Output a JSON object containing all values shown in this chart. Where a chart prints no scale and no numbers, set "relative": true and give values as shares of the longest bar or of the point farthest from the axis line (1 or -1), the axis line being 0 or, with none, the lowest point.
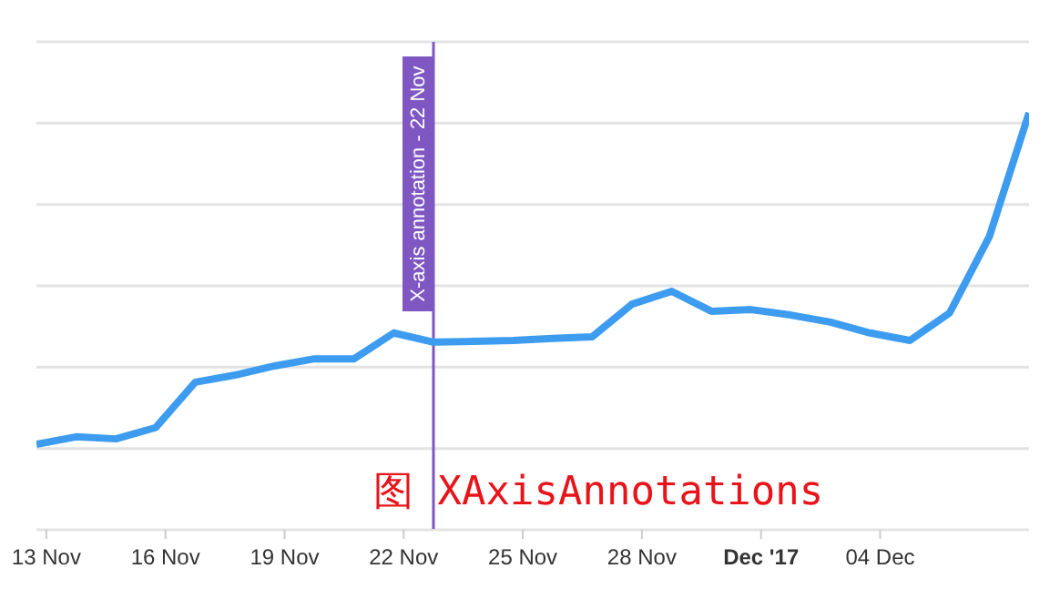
{
  "chart_data": {
    "type": "line",
    "relative": true,
    "grid": "y",
    "legend": false,
    "marker": "none",
    "line_style": "solid",
    "x": [
      "2017-11-12T18:00",
      "2017-11-13T18:00",
      "2017-11-14T18:00",
      "2017-11-15T18:00",
      "2017-11-16T18:00",
      "2017-11-17T18:00",
      "2017-11-18T18:00",
      "2017-11-19T18:00",
      "2017-11-20T18:00",
      "2017-11-21T18:00",
      "2017-11-22T18:00",
      "2017-11-23T18:00",
      "2017-11-24T18:00",
      "2017-11-25T18:00",
      "2017-11-26T18:00",
      "2017-11-27T18:00",
      "2017-11-28T18:00",
      "2017-11-29T18:00",
      "2017-11-30T18:00",
      "2017-12-01T18:00",
      "2017-12-02T18:00",
      "2017-12-03T18:00",
      "2017-12-04T18:00",
      "2017-12-05T18:00",
      "2017-12-06T18:00",
      "2017-12-07T18:00"
    ],
    "series": [
      {
        "color": "#3d9cf0",
        "values": [
          0.205,
          0.223,
          0.218,
          0.245,
          0.354,
          0.371,
          0.393,
          0.41,
          0.41,
          0.472,
          0.45,
          0.452,
          0.454,
          0.459,
          0.463,
          0.541,
          0.572,
          0.524,
          0.528,
          0.515,
          0.498,
          0.472,
          0.454,
          0.52,
          0.703,
          1
        ]
      }
    ],
    "xlim": [
      "2017-11-12T18:00",
      "2017-12-07T18:00"
    ],
    "xticks": [
      {
        "value": "2017-11-13",
        "label": "13 Nov"
      },
      {
        "value": "2017-11-16",
        "label": "16 Nov"
      },
      {
        "value": "2017-11-19",
        "label": "19 Nov"
      },
      {
        "value": "2017-11-22",
        "label": "22 Nov"
      },
      {
        "value": "2017-11-25",
        "label": "25 Nov"
      },
      {
        "value": "2017-11-28",
        "label": "28 Nov"
      },
      {
        "value": "2017-12-01",
        "label": "Dec '17"
      },
      {
        "value": "2017-12-04",
        "label": "04 Dec"
      }
    ],
    "ref_lines": [
      {
        "axis": "x",
        "value": "2017-11-22T18:00",
        "label": "X-axis annotation - 22 Nov",
        "color": "#7e57c2"
      }
    ],
    "annotations": [
      "图 XAxisAnnotations"
    ]
  }
}
